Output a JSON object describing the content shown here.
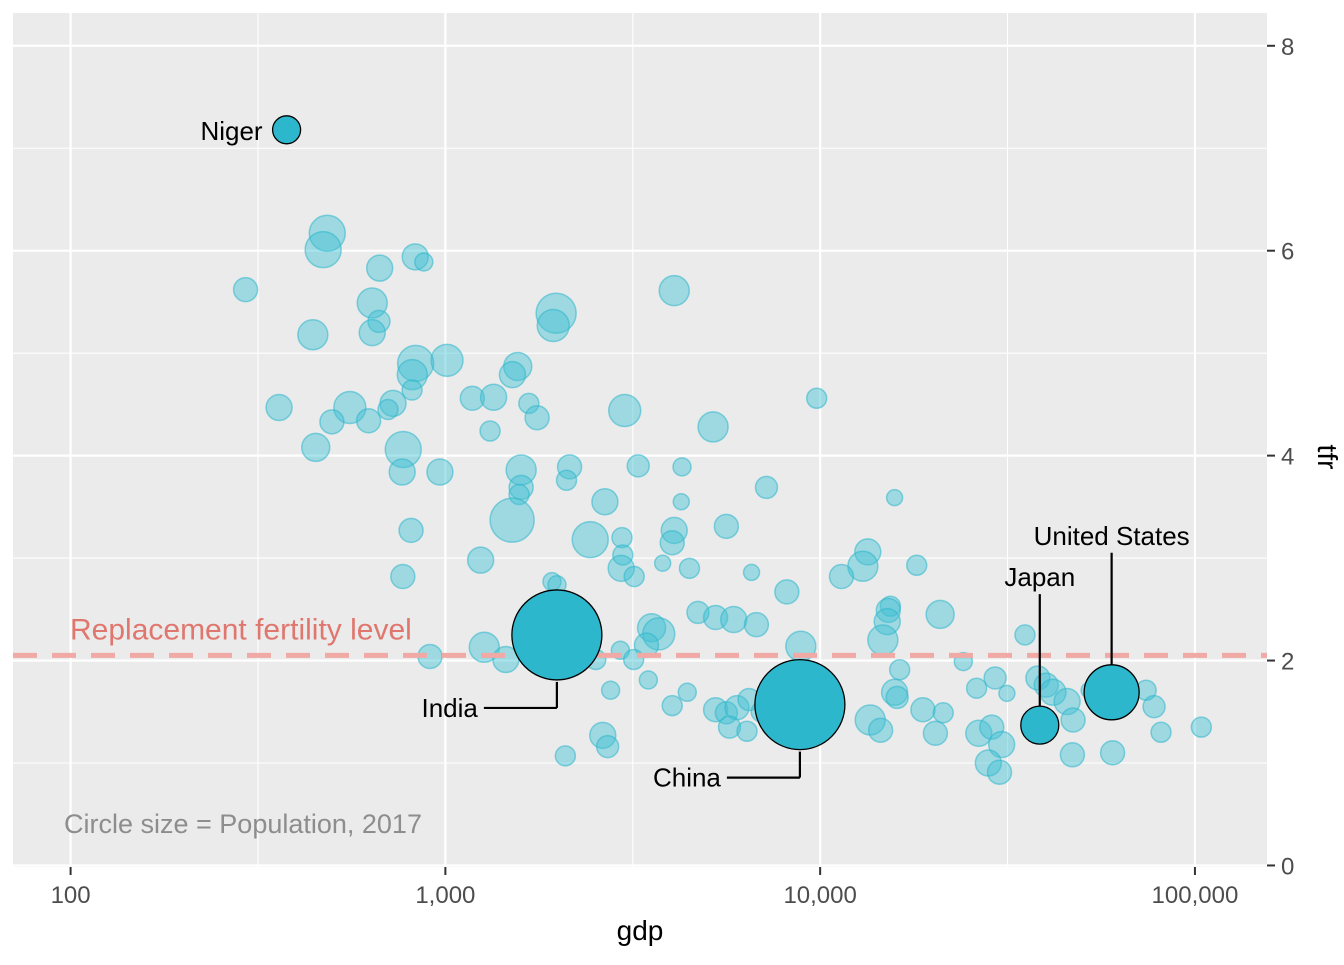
{
  "chart_data": {
    "type": "scatter",
    "subtype": "bubble",
    "title": "",
    "xlabel": "gdp",
    "ylabel": "tfr",
    "x_scale": "log10",
    "xlim": [
      70.2,
      155700
    ],
    "ylim": [
      -0.015,
      8.32
    ],
    "grid": true,
    "x_ticks": [
      {
        "value": 100,
        "label": "100"
      },
      {
        "value": 1000,
        "label": "1,000"
      },
      {
        "value": 10000,
        "label": "10,000"
      },
      {
        "value": 100000,
        "label": "100,000"
      }
    ],
    "x_minor_ticks": [
      316.23,
      3162.3,
      31623
    ],
    "y_ticks": [
      {
        "value": 0,
        "label": "0"
      },
      {
        "value": 2,
        "label": "2"
      },
      {
        "value": 4,
        "label": "4"
      },
      {
        "value": 6,
        "label": "6"
      },
      {
        "value": 8,
        "label": "8"
      }
    ],
    "y_minor_ticks": [
      1,
      3,
      5,
      7
    ],
    "reference_line": {
      "y": 2.05,
      "label": "Replacement fertility level",
      "style": "dashed",
      "line_color": "#f0a9a4",
      "label_color": "#e0776f"
    },
    "size_note": {
      "text": "Circle size = Population, 2017",
      "color": "#8d8d8d"
    },
    "colors": {
      "panel_bg": "#ebebeb",
      "grid": "#ffffff",
      "bubble_fill": "#41c0d3",
      "bubble_stroke": "#2db7cc",
      "labeled_fill": "#2db7cc",
      "labeled_stroke": "#000000",
      "tick_label": "#4d4d4d",
      "axis_title": "#000000",
      "country_label": "#000000"
    },
    "labeled_points": [
      {
        "name": "Niger",
        "gdp": 377,
        "tfr": 7.18,
        "r": 14,
        "label_mode": "left"
      },
      {
        "name": "India",
        "gdp": 1984,
        "tfr": 2.25,
        "r": 45,
        "label_mode": "elbow"
      },
      {
        "name": "China",
        "gdp": 8830,
        "tfr": 1.57,
        "r": 45,
        "label_mode": "elbow"
      },
      {
        "name": "Japan",
        "gdp": 38550,
        "tfr": 1.37,
        "r": 19,
        "label_mode": "above"
      },
      {
        "name": "United States",
        "gdp": 59940,
        "tfr": 1.69,
        "r": 27.5,
        "label_mode": "above"
      }
    ],
    "points": [
      [
        293,
        5.62,
        12
      ],
      [
        484,
        6.17,
        18
      ],
      [
        472,
        6.01,
        18
      ],
      [
        668,
        5.83,
        13
      ],
      [
        831,
        5.94,
        13
      ],
      [
        876,
        5.89,
        9
      ],
      [
        638,
        5.49,
        15
      ],
      [
        665,
        5.31,
        11
      ],
      [
        443,
        5.18,
        15
      ],
      [
        638,
        5.2,
        13
      ],
      [
        1010,
        4.93,
        16
      ],
      [
        833,
        4.9,
        18
      ],
      [
        816,
        4.79,
        15
      ],
      [
        360,
        4.47,
        13
      ],
      [
        556,
        4.47,
        16
      ],
      [
        498,
        4.33,
        12
      ],
      [
        624,
        4.34,
        12
      ],
      [
        725,
        4.51,
        13
      ],
      [
        703,
        4.45,
        10
      ],
      [
        815,
        4.64,
        10
      ],
      [
        451,
        4.08,
        14
      ],
      [
        772,
        4.06,
        18
      ],
      [
        767,
        3.84,
        13
      ],
      [
        967,
        3.84,
        13
      ],
      [
        1180,
        4.56,
        12
      ],
      [
        1345,
        4.57,
        13
      ],
      [
        1316,
        4.24,
        10
      ],
      [
        1670,
        4.51,
        10
      ],
      [
        1757,
        4.37,
        12
      ],
      [
        1560,
        4.87,
        14
      ],
      [
        1510,
        4.79,
        13
      ],
      [
        1593,
        3.86,
        15
      ],
      [
        1593,
        3.69,
        12
      ],
      [
        1573,
        3.62,
        10
      ],
      [
        1507,
        3.37,
        22
      ],
      [
        1242,
        2.98,
        13
      ],
      [
        810,
        3.27,
        12
      ],
      [
        770,
        2.82,
        12
      ],
      [
        910,
        2.04,
        12
      ],
      [
        1270,
        2.13,
        15
      ],
      [
        1450,
        2.01,
        13
      ],
      [
        1925,
        2.77,
        9
      ],
      [
        1975,
        5.39,
        20
      ],
      [
        1940,
        5.27,
        16
      ],
      [
        4080,
        5.61,
        15
      ],
      [
        3010,
        4.44,
        16
      ],
      [
        5180,
        4.28,
        15
      ],
      [
        9790,
        4.56,
        10
      ],
      [
        3270,
        3.9,
        11
      ],
      [
        4280,
        3.89,
        9
      ],
      [
        2145,
        3.89,
        12
      ],
      [
        2105,
        3.76,
        10
      ],
      [
        2665,
        3.55,
        13
      ],
      [
        7190,
        3.69,
        11
      ],
      [
        15800,
        3.59,
        8
      ],
      [
        4260,
        3.55,
        8
      ],
      [
        5620,
        3.31,
        12
      ],
      [
        2435,
        3.18,
        18
      ],
      [
        2960,
        3.2,
        10
      ],
      [
        2975,
        3.03,
        10
      ],
      [
        4080,
        3.27,
        13
      ],
      [
        4030,
        3.15,
        12
      ],
      [
        13400,
        3.06,
        13
      ],
      [
        13000,
        2.92,
        15
      ],
      [
        1985,
        2.74,
        9
      ],
      [
        2945,
        2.9,
        13
      ],
      [
        3190,
        2.82,
        10
      ],
      [
        3800,
        2.95,
        8
      ],
      [
        4480,
        2.9,
        10
      ],
      [
        6560,
        2.86,
        8
      ],
      [
        4720,
        2.47,
        11
      ],
      [
        5260,
        2.42,
        12
      ],
      [
        5880,
        2.4,
        13
      ],
      [
        6760,
        2.35,
        12
      ],
      [
        8150,
        2.67,
        12
      ],
      [
        8880,
        2.14,
        15
      ],
      [
        11400,
        2.82,
        12
      ],
      [
        15400,
        2.53,
        10
      ],
      [
        20900,
        2.45,
        14
      ],
      [
        3550,
        2.32,
        14
      ],
      [
        3710,
        2.26,
        16
      ],
      [
        3440,
        2.15,
        12
      ],
      [
        2520,
        2.01,
        10
      ],
      [
        2930,
        2.1,
        9
      ],
      [
        3180,
        2.01,
        10
      ],
      [
        1745,
        2.19,
        11
      ],
      [
        1630,
        2.26,
        10
      ],
      [
        2760,
        1.71,
        9
      ],
      [
        3480,
        1.81,
        9
      ],
      [
        4030,
        1.56,
        10
      ],
      [
        2630,
        1.27,
        13
      ],
      [
        2710,
        1.16,
        11
      ],
      [
        4420,
        1.69,
        9
      ],
      [
        5260,
        1.52,
        12
      ],
      [
        5620,
        1.49,
        11
      ],
      [
        6000,
        1.54,
        12
      ],
      [
        6460,
        1.62,
        11
      ],
      [
        6960,
        1.5,
        10
      ],
      [
        5730,
        1.35,
        11
      ],
      [
        6380,
        1.31,
        10
      ],
      [
        2090,
        1.07,
        10
      ],
      [
        15200,
        2.49,
        12
      ],
      [
        15100,
        2.38,
        13
      ],
      [
        14700,
        2.2,
        15
      ],
      [
        35200,
        2.25,
        10
      ],
      [
        24100,
        1.99,
        9
      ],
      [
        16300,
        1.91,
        10
      ],
      [
        15800,
        1.69,
        13
      ],
      [
        16050,
        1.64,
        11
      ],
      [
        26150,
        1.73,
        10
      ],
      [
        29300,
        1.83,
        11
      ],
      [
        31500,
        1.68,
        8
      ],
      [
        38100,
        1.83,
        12
      ],
      [
        40100,
        1.76,
        12
      ],
      [
        41800,
        1.69,
        13
      ],
      [
        45600,
        1.6,
        13
      ],
      [
        47300,
        1.42,
        12
      ],
      [
        52200,
        1.71,
        8
      ],
      [
        74100,
        1.71,
        10
      ],
      [
        77800,
        1.55,
        11
      ],
      [
        81200,
        1.3,
        10
      ],
      [
        104000,
        1.35,
        10
      ],
      [
        13600,
        1.42,
        15
      ],
      [
        14500,
        1.32,
        12
      ],
      [
        20300,
        1.29,
        12
      ],
      [
        21300,
        1.49,
        10
      ],
      [
        18800,
        1.52,
        12
      ],
      [
        26500,
        1.29,
        13
      ],
      [
        28700,
        1.35,
        12
      ],
      [
        30500,
        1.18,
        13
      ],
      [
        28100,
        1.0,
        13
      ],
      [
        30100,
        0.91,
        12
      ],
      [
        47100,
        1.08,
        12
      ],
      [
        60300,
        1.1,
        12
      ],
      [
        18100,
        2.93,
        10
      ],
      [
        63800,
        1.69,
        9
      ]
    ]
  }
}
